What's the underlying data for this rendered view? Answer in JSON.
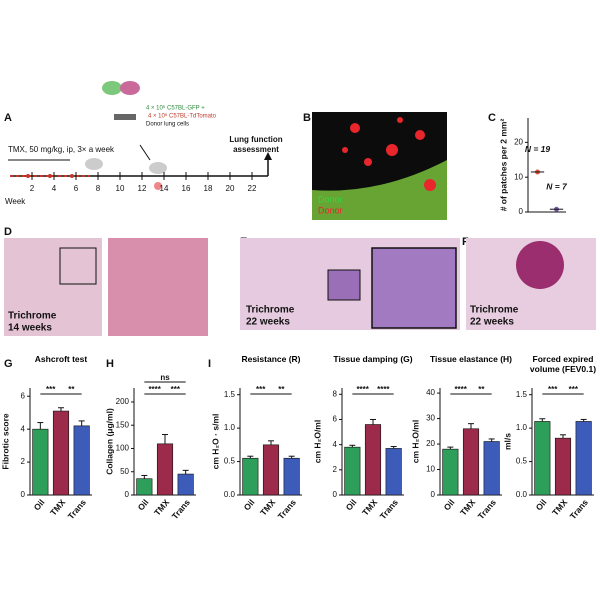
{
  "panel_labels": [
    "A",
    "B",
    "C",
    "D",
    "E",
    "F",
    "G",
    "H",
    "I"
  ],
  "timeline": {
    "treatment": "TMX, 50 mg/kg, ip, 3× a week",
    "axis_label": "Week",
    "weeks": [
      2,
      4,
      6,
      8,
      10,
      12,
      14,
      16,
      18,
      20,
      22
    ],
    "cells_line1": "4 × 10⁶ C57BL-GFP +",
    "cells_line2": "4 × 10⁶ C57BL-TdTomato",
    "cells_line3": "Donor lung cells",
    "endpoint_line1": "Lung function",
    "endpoint_line2": "assessment"
  },
  "images": {
    "B": {
      "labels": [
        "Donor",
        "Donor"
      ]
    },
    "D": {
      "caption": [
        "Trichrome",
        "14 weeks"
      ]
    },
    "E": {
      "caption": [
        "Trichrome",
        "22 weeks"
      ]
    },
    "F": {
      "caption": [
        "Trichrome",
        "22 weeks"
      ]
    }
  },
  "chart_data": [
    {
      "type": "dot",
      "ylabel": "# of patches per 2 mm²",
      "categories": [
        null,
        null
      ],
      "values": [
        11.5,
        0.8
      ],
      "colors": [
        "#e0553a",
        "#7a5aa8"
      ],
      "annotations": [
        "N = 19",
        "N = 7"
      ],
      "ylim": [
        0,
        27
      ],
      "yticks": [
        0,
        10,
        20
      ]
    },
    {
      "type": "bar",
      "title": "Ashcroft test",
      "ylabel": "Fibrotic score",
      "categories": [
        "Oil",
        "TMX",
        "Trans"
      ],
      "values": [
        4.0,
        5.1,
        4.2
      ],
      "errors": [
        0.4,
        0.2,
        0.3
      ],
      "colors": [
        "#2e9e5b",
        "#9c2a4a",
        "#3d5bb8"
      ],
      "ylim": [
        0,
        6.5
      ],
      "yticks": [
        0,
        2,
        4,
        6
      ],
      "significance": [
        {
          "pair": [
            "Oil",
            "TMX"
          ],
          "label": "***"
        },
        {
          "pair": [
            "TMX",
            "Trans"
          ],
          "label": "**"
        }
      ]
    },
    {
      "type": "bar",
      "ylabel": "Collagen (μg/ml)",
      "categories": [
        "Oil",
        "TMX",
        "Trans"
      ],
      "values": [
        35,
        110,
        45
      ],
      "errors": [
        7,
        20,
        8
      ],
      "colors": [
        "#2e9e5b",
        "#9c2a4a",
        "#3d5bb8"
      ],
      "ylim": [
        0,
        230
      ],
      "yticks": [
        0,
        50,
        100,
        150,
        200
      ],
      "significance": [
        {
          "pair": [
            "Oil",
            "TMX"
          ],
          "label": "****"
        },
        {
          "pair": [
            "TMX",
            "Trans"
          ],
          "label": "***"
        },
        {
          "pair": [
            "Oil",
            "Trans"
          ],
          "label": "ns"
        }
      ]
    },
    {
      "type": "bar",
      "title": "Resistance (R)",
      "ylabel": "cm H₂O · s/ml",
      "categories": [
        "Oil",
        "TMX",
        "Trans"
      ],
      "values": [
        0.55,
        0.75,
        0.55
      ],
      "errors": [
        0.03,
        0.06,
        0.03
      ],
      "colors": [
        "#2e9e5b",
        "#9c2a4a",
        "#3d5bb8"
      ],
      "ylim": [
        0,
        1.6
      ],
      "yticks": [
        {
          "value": 0,
          "label": "0.0"
        },
        0.5,
        {
          "value": 1,
          "label": "1.0"
        },
        1.5
      ],
      "significance": [
        {
          "pair": [
            "Oil",
            "TMX"
          ],
          "label": "***"
        },
        {
          "pair": [
            "TMX",
            "Trans"
          ],
          "label": "**"
        }
      ]
    },
    {
      "type": "bar",
      "title": "Tissue damping (G)",
      "ylabel": "cm H₂O/ml",
      "categories": [
        "Oil",
        "TMX",
        "Trans"
      ],
      "values": [
        3.8,
        5.6,
        3.7
      ],
      "errors": [
        0.15,
        0.4,
        0.15
      ],
      "colors": [
        "#2e9e5b",
        "#9c2a4a",
        "#3d5bb8"
      ],
      "ylim": [
        0,
        8.5
      ],
      "yticks": [
        0,
        2,
        4,
        6,
        8
      ],
      "significance": [
        {
          "pair": [
            "Oil",
            "TMX"
          ],
          "label": "****"
        },
        {
          "pair": [
            "TMX",
            "Trans"
          ],
          "label": "****"
        }
      ]
    },
    {
      "type": "bar",
      "title": "Tissue elastance (H)",
      "ylabel": "cm H₂O/ml",
      "categories": [
        "Oil",
        "TMX",
        "Trans"
      ],
      "values": [
        18,
        26,
        21
      ],
      "errors": [
        0.8,
        2,
        1
      ],
      "colors": [
        "#2e9e5b",
        "#9c2a4a",
        "#3d5bb8"
      ],
      "ylim": [
        0,
        42
      ],
      "yticks": [
        0,
        10,
        20,
        30,
        40
      ],
      "significance": [
        {
          "pair": [
            "Oil",
            "TMX"
          ],
          "label": "****"
        },
        {
          "pair": [
            "TMX",
            "Trans"
          ],
          "label": "**"
        }
      ]
    },
    {
      "type": "bar",
      "title": "Forced expired volume (FEV0.1)",
      "ylabel": "ml/s",
      "categories": [
        "Oil",
        "TMX",
        "Trans"
      ],
      "values": [
        1.1,
        0.85,
        1.1
      ],
      "errors": [
        0.04,
        0.05,
        0.03
      ],
      "colors": [
        "#2e9e5b",
        "#9c2a4a",
        "#3d5bb8"
      ],
      "ylim": [
        0,
        1.6
      ],
      "yticks": [
        {
          "value": 0,
          "label": "0.0"
        },
        0.5,
        {
          "value": 1,
          "label": "1.0"
        },
        1.5
      ],
      "significance": [
        {
          "pair": [
            "Oil",
            "TMX"
          ],
          "label": "***"
        },
        {
          "pair": [
            "TMX",
            "Trans"
          ],
          "label": "***"
        }
      ]
    }
  ]
}
